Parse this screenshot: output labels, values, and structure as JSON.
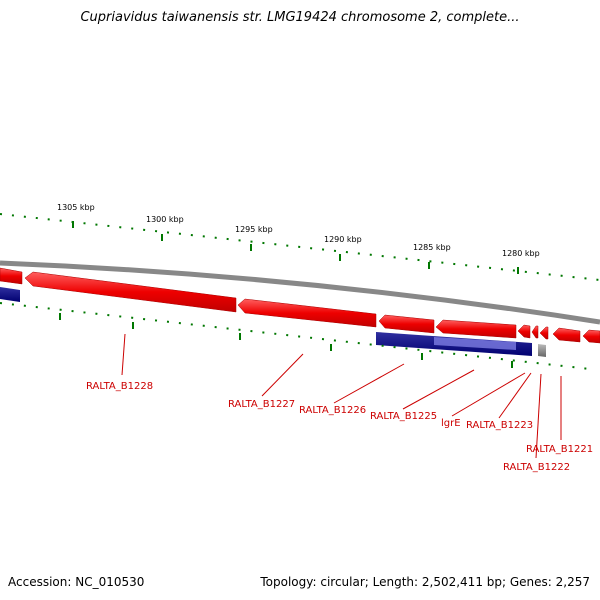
{
  "title": "Cupriavidus taiwanensis str. LMG19424 chromosome 2, complete...",
  "footer": {
    "accession": "Accession: NC_010530",
    "summary": "Topology: circular; Length: 2,502,411 bp; Genes: 2,257"
  },
  "ruler": {
    "ticks": [
      {
        "label": "1305 kbp"
      },
      {
        "label": "1300 kbp"
      },
      {
        "label": "1295 kbp"
      },
      {
        "label": "1290 kbp"
      },
      {
        "label": "1285 kbp"
      },
      {
        "label": "1280 kbp"
      }
    ]
  },
  "genes": [
    {
      "label": "RALTA_B1228"
    },
    {
      "label": "RALTA_B1227"
    },
    {
      "label": "RALTA_B1226"
    },
    {
      "label": "RALTA_B1225"
    },
    {
      "label": "lgrE"
    },
    {
      "label": "RALTA_B1223"
    },
    {
      "label": "RALTA_B1221"
    },
    {
      "label": "RALTA_B1222"
    }
  ],
  "colors": {
    "gene_forward": "#ee0000",
    "gene_blue": "#000080",
    "backbone": "#888888",
    "tick": "#007700",
    "label": "#cc0000"
  }
}
